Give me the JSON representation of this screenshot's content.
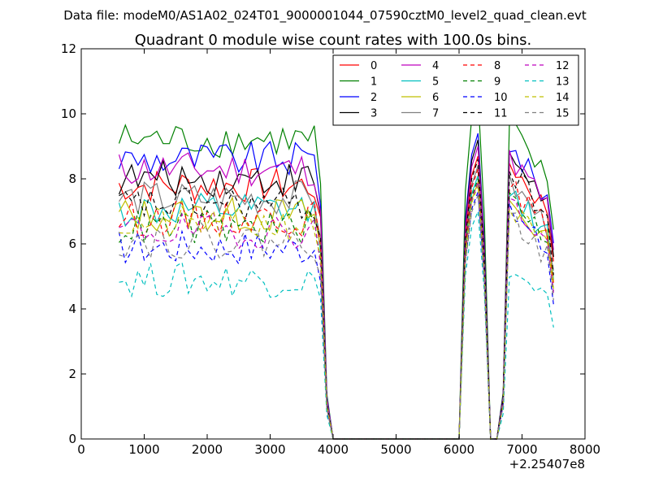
{
  "chart_data": {
    "type": "line",
    "suptitle": "Data file: modeM0/AS1A02_024T01_9000001044_07590cztM0_level2_quad_clean.evt",
    "title": "Quadrant 0 module wise count rates with 100.0s bins.",
    "xlabel": "",
    "ylabel": "",
    "x_offset_label": "+2.25407e8",
    "xlim": [
      0,
      8000
    ],
    "ylim": [
      0,
      12
    ],
    "x_ticks": [
      0,
      1000,
      2000,
      3000,
      4000,
      5000,
      6000,
      7000,
      8000
    ],
    "y_ticks": [
      0,
      2,
      4,
      6,
      8,
      10,
      12
    ],
    "legend_position": "top-right",
    "legend_columns": 4,
    "x": [
      600,
      700,
      800,
      900,
      1000,
      1100,
      1200,
      1300,
      1400,
      1500,
      1600,
      1700,
      1800,
      1900,
      2000,
      2100,
      2200,
      2300,
      2400,
      2500,
      2600,
      2700,
      2800,
      2900,
      3000,
      3100,
      3200,
      3300,
      3400,
      3500,
      3600,
      3700,
      3800,
      3900,
      4000,
      4100,
      4200,
      4300,
      4400,
      4500,
      4600,
      4700,
      4800,
      4900,
      5000,
      5100,
      5200,
      5300,
      5400,
      5500,
      5600,
      5700,
      5800,
      5900,
      6000,
      6100,
      6200,
      6300,
      6400,
      6500,
      6600,
      6700,
      6800,
      6900,
      7000,
      7100,
      7200,
      7300,
      7400,
      7500
    ],
    "series": [
      {
        "name": "0",
        "color": "#ff0000",
        "dash": false,
        "level": 7.8,
        "p2": 8.7,
        "p3": 8.5
      },
      {
        "name": "1",
        "color": "#008000",
        "dash": false,
        "level": 9.2,
        "p2": 10.6,
        "p3": 9.6
      },
      {
        "name": "2",
        "color": "#0000ff",
        "dash": false,
        "level": 8.6,
        "p2": 9.4,
        "p3": 9.0
      },
      {
        "name": "3",
        "color": "#000000",
        "dash": false,
        "level": 8.0,
        "p2": 9.2,
        "p3": 8.8
      },
      {
        "name": "4",
        "color": "#bf00bf",
        "dash": false,
        "level": 8.3,
        "p2": 9.0,
        "p3": 8.7
      },
      {
        "name": "5",
        "color": "#00bfbf",
        "dash": false,
        "level": 7.0,
        "p2": 8.1,
        "p3": 7.6
      },
      {
        "name": "6",
        "color": "#bfbf00",
        "dash": false,
        "level": 6.9,
        "p2": 7.9,
        "p3": 7.3
      },
      {
        "name": "7",
        "color": "#808080",
        "dash": false,
        "level": 7.4,
        "p2": 8.4,
        "p3": 7.9
      },
      {
        "name": "8",
        "color": "#ff0000",
        "dash": true,
        "level": 6.8,
        "p2": 8.3,
        "p3": 7.8
      },
      {
        "name": "9",
        "color": "#008000",
        "dash": true,
        "level": 6.5,
        "p2": 8.0,
        "p3": 7.5
      },
      {
        "name": "10",
        "color": "#0000ff",
        "dash": true,
        "level": 5.9,
        "p2": 7.6,
        "p3": 7.0
      },
      {
        "name": "11",
        "color": "#000000",
        "dash": true,
        "level": 7.2,
        "p2": 8.6,
        "p3": 8.3
      },
      {
        "name": "12",
        "color": "#bf00bf",
        "dash": true,
        "level": 6.4,
        "p2": 7.9,
        "p3": 7.3
      },
      {
        "name": "13",
        "color": "#00bfbf",
        "dash": true,
        "level": 4.9,
        "p2": 7.0,
        "p3": 5.2
      },
      {
        "name": "14",
        "color": "#bfbf00",
        "dash": true,
        "level": 6.6,
        "p2": 7.8,
        "p3": 7.1
      },
      {
        "name": "15",
        "color": "#808080",
        "dash": true,
        "level": 6.1,
        "p2": 7.5,
        "p3": 6.8
      }
    ]
  }
}
